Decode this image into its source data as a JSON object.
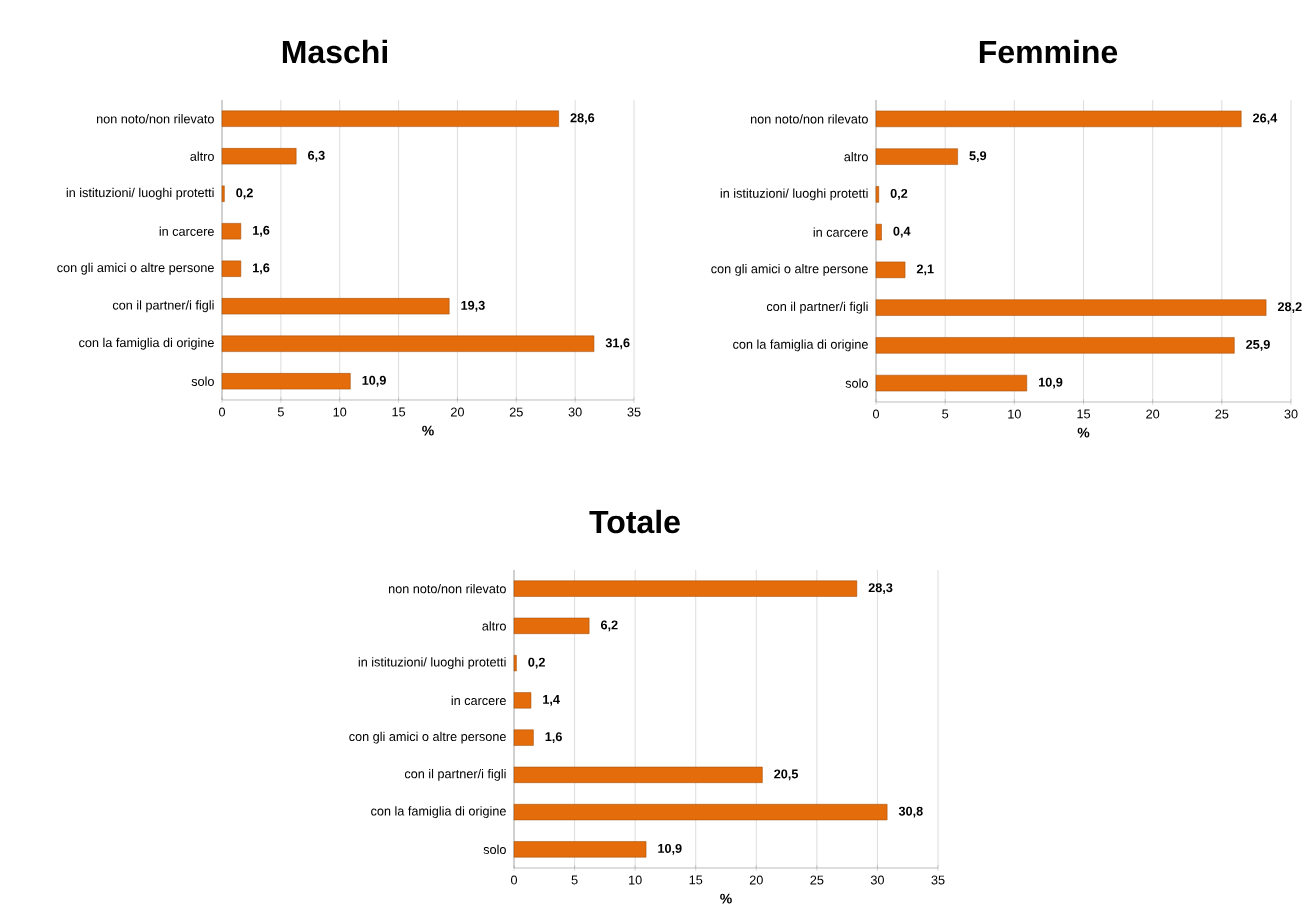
{
  "chart_data": [
    {
      "type": "bar",
      "orientation": "horizontal",
      "title": "Maschi",
      "xlabel": "%",
      "categories": [
        "non noto/non rilevato",
        "altro",
        "in istituzioni/ luoghi protetti",
        "in carcere",
        "con gli amici o altre persone",
        "con il partner/i figli",
        "con la famiglia di origine",
        "solo"
      ],
      "values": [
        28.6,
        6.3,
        0.2,
        1.6,
        1.6,
        19.3,
        31.6,
        10.9
      ],
      "value_labels": [
        "28,6",
        "6,3",
        "0,2",
        "1,6",
        "1,6",
        "19,3",
        "31,6",
        "10,9"
      ],
      "color": "#e46c0a",
      "xlim": [
        0,
        35
      ],
      "xticks": [
        0,
        5,
        10,
        15,
        20,
        25,
        30,
        35
      ],
      "grid": "x"
    },
    {
      "type": "bar",
      "orientation": "horizontal",
      "title": "Femmine",
      "xlabel": "%",
      "categories": [
        "non noto/non rilevato",
        "altro",
        "in istituzioni/ luoghi protetti",
        "in carcere",
        "con gli amici o altre persone",
        "con il partner/i figli",
        "con la famiglia di origine",
        "solo"
      ],
      "values": [
        26.4,
        5.9,
        0.2,
        0.4,
        2.1,
        28.2,
        25.9,
        10.9
      ],
      "value_labels": [
        "26,4",
        "5,9",
        "0,2",
        "0,4",
        "2,1",
        "28,2",
        "25,9",
        "10,9"
      ],
      "color": "#e46c0a",
      "xlim": [
        0,
        30
      ],
      "xticks": [
        0,
        5,
        10,
        15,
        20,
        25,
        30
      ],
      "grid": "x"
    },
    {
      "type": "bar",
      "orientation": "horizontal",
      "title": "Totale",
      "xlabel": "%",
      "categories": [
        "non noto/non rilevato",
        "altro",
        "in istituzioni/ luoghi protetti",
        "in carcere",
        "con gli amici o altre persone",
        "con il partner/i figli",
        "con la famiglia di origine",
        "solo"
      ],
      "values": [
        28.3,
        6.2,
        0.2,
        1.4,
        1.6,
        20.5,
        30.8,
        10.9
      ],
      "value_labels": [
        "28,3",
        "6,2",
        "0,2",
        "1,4",
        "1,6",
        "20,5",
        "30,8",
        "10,9"
      ],
      "color": "#e46c0a",
      "xlim": [
        0,
        35
      ],
      "xticks": [
        0,
        5,
        10,
        15,
        20,
        25,
        30,
        35
      ],
      "grid": "x"
    }
  ]
}
